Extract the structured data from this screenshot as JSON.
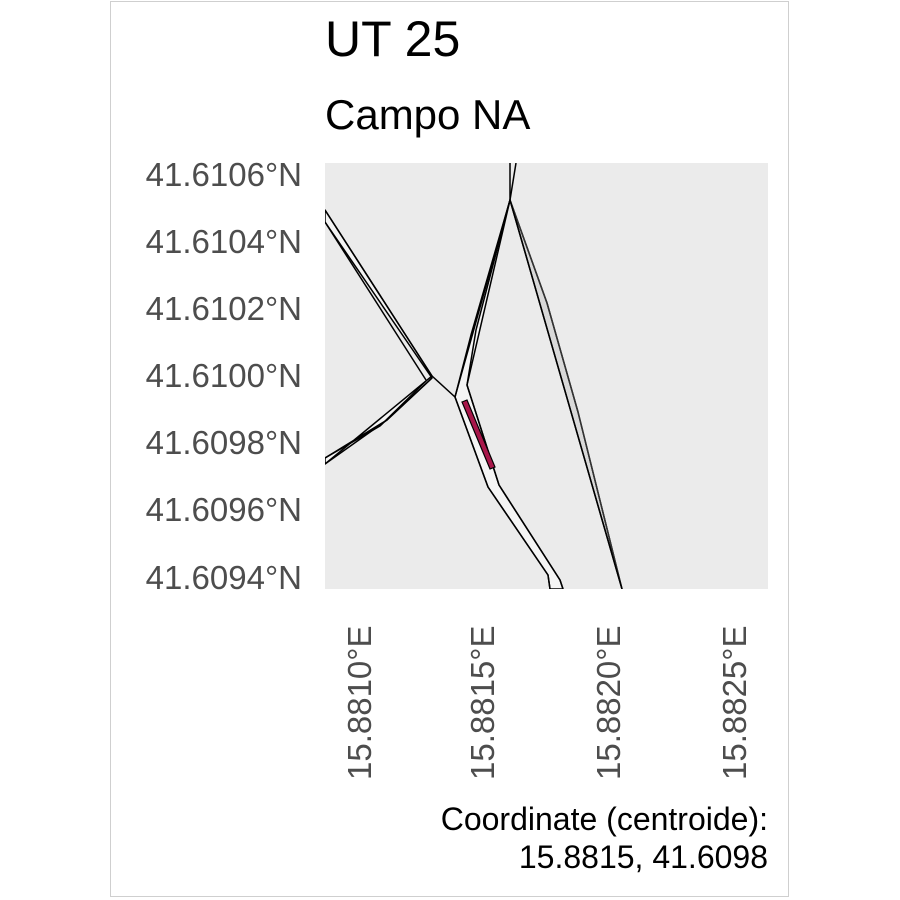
{
  "title": "UT 25",
  "subtitle": "Campo NA",
  "map": {
    "panel_color": "#ebebeb",
    "line_color": "#000000",
    "highlight_color": "#a8174a",
    "y_ticks": [
      "41.6106°N",
      "41.6104°N",
      "41.6102°N",
      "41.6100°N",
      "41.6098°N",
      "41.6096°N",
      "41.6094°N"
    ],
    "x_ticks": [
      "15.8810°E",
      "15.8815°E",
      "15.8820°E",
      "15.8825°E"
    ],
    "highlighted_parcel": "UT 25"
  },
  "caption": {
    "line1": "Coordinate (centroide):",
    "line2": "15.8815, 41.6098"
  }
}
